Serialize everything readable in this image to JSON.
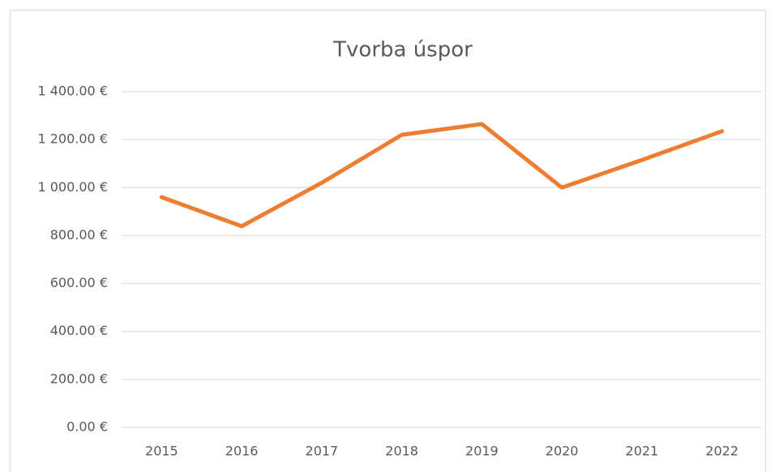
{
  "chart_data": {
    "type": "line",
    "title": "Tvorba úspor",
    "categories": [
      "2015",
      "2016",
      "2017",
      "2018",
      "2019",
      "2020",
      "2021",
      "2022"
    ],
    "series": [
      {
        "name": "Tvorba úspor",
        "color": "#ed7d31",
        "values": [
          960,
          839,
          1020,
          1220,
          1265,
          1000,
          1115,
          1235
        ]
      }
    ],
    "ylim": [
      0,
      1400
    ],
    "yticks": [
      {
        "value": 0,
        "label": "0.00 €"
      },
      {
        "value": 200,
        "label": "200.00 €"
      },
      {
        "value": 400,
        "label": "400.00 €"
      },
      {
        "value": 600,
        "label": "600.00 €"
      },
      {
        "value": 800,
        "label": "800.00 €"
      },
      {
        "value": 1000,
        "label": "1 000.00 €"
      },
      {
        "value": 1200,
        "label": "1 200.00 €"
      },
      {
        "value": 1400,
        "label": "1 400.00 €"
      }
    ],
    "grid": true
  }
}
